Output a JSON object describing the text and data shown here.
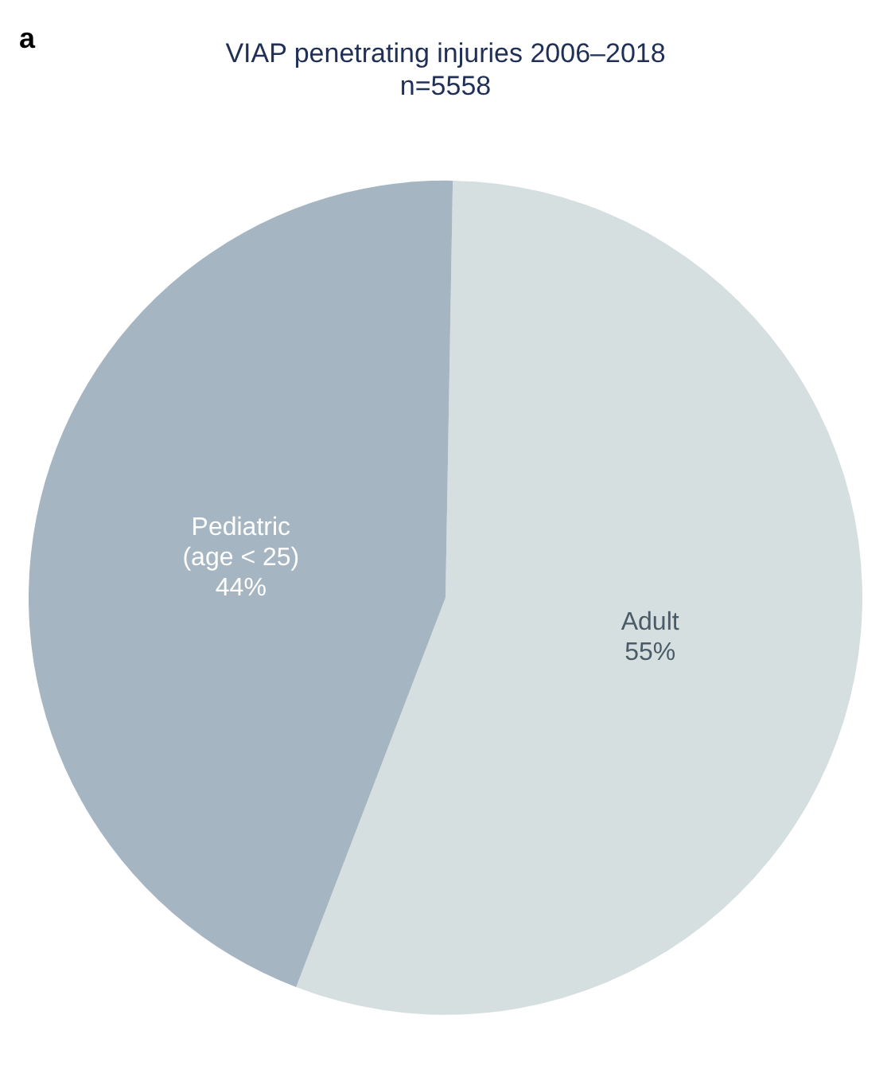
{
  "chart_data": {
    "type": "pie",
    "title": "VIAP penetrating injuries 2006–2018",
    "subtitle": "n=5558",
    "annotations": [
      "a"
    ],
    "categories": [
      "Adult",
      "Pediatric\n(age < 25)"
    ],
    "values": [
      55,
      44
    ],
    "colors": [
      "#d5dfdf",
      "#a5b5c2"
    ],
    "value_labels": [
      "55%",
      "44%"
    ],
    "legend": false
  }
}
